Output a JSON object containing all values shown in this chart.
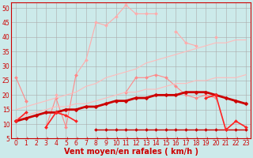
{
  "background_color": "#cceaea",
  "grid_color": "#aaaaaa",
  "xlabel": "Vent moyen/en rafales ( km/h )",
  "xlabel_color": "#cc0000",
  "x_ticks": [
    0,
    1,
    2,
    3,
    4,
    5,
    6,
    7,
    8,
    9,
    10,
    11,
    12,
    13,
    14,
    15,
    16,
    17,
    18,
    19,
    20,
    21,
    22,
    23
  ],
  "ylim": [
    5,
    52
  ],
  "xlim": [
    -0.5,
    23.5
  ],
  "yticks": [
    5,
    10,
    15,
    20,
    25,
    30,
    35,
    40,
    45,
    50
  ],
  "lines": [
    {
      "color": "#ffaaaa",
      "lw": 0.8,
      "marker": "D",
      "markersize": 2.0,
      "y": [
        null,
        18,
        null,
        null,
        20,
        null,
        27,
        32,
        45,
        44,
        47,
        51,
        48,
        48,
        48,
        null,
        42,
        38,
        37,
        null,
        40,
        null,
        null,
        null
      ]
    },
    {
      "color": "#ff8888",
      "lw": 0.8,
      "marker": "D",
      "markersize": 2.0,
      "y": [
        26,
        18,
        null,
        9,
        19,
        9,
        27,
        null,
        null,
        null,
        null,
        21,
        26,
        26,
        27,
        26,
        23,
        20,
        19,
        20,
        19,
        null,
        null,
        null
      ]
    },
    {
      "color": "#ffbbbb",
      "lw": 0.8,
      "marker": null,
      "markersize": 0,
      "y": [
        15,
        16,
        17,
        18,
        19,
        20,
        21,
        23,
        24,
        26,
        27,
        28,
        29,
        31,
        32,
        33,
        34,
        35,
        36,
        37,
        38,
        38,
        39,
        39
      ]
    },
    {
      "color": "#ffbbbb",
      "lw": 0.8,
      "marker": null,
      "markersize": 0,
      "y": [
        12,
        13,
        14,
        15,
        16,
        16,
        17,
        17,
        18,
        19,
        20,
        21,
        21,
        22,
        22,
        23,
        24,
        24,
        25,
        25,
        26,
        26,
        26,
        27
      ]
    },
    {
      "color": "#cc0000",
      "lw": 2.0,
      "marker": "D",
      "markersize": 2.5,
      "y": [
        11,
        12,
        13,
        14,
        14,
        15,
        15,
        16,
        16,
        17,
        18,
        18,
        19,
        19,
        20,
        20,
        20,
        21,
        21,
        21,
        20,
        19,
        18,
        17
      ]
    },
    {
      "color": "#cc0000",
      "lw": 1.0,
      "marker": "D",
      "markersize": 2.0,
      "y": [
        null,
        null,
        null,
        null,
        null,
        null,
        null,
        null,
        8,
        8,
        8,
        8,
        8,
        8,
        8,
        8,
        8,
        8,
        8,
        8,
        8,
        8,
        8,
        8
      ]
    },
    {
      "color": "#ff2222",
      "lw": 1.2,
      "marker": "D",
      "markersize": 2.0,
      "y": [
        11,
        14,
        null,
        9,
        14,
        13,
        11,
        null,
        null,
        null,
        null,
        null,
        null,
        null,
        null,
        null,
        null,
        null,
        null,
        19,
        20,
        8,
        11,
        9
      ]
    }
  ],
  "tick_fontsize": 5.5,
  "label_fontsize": 7,
  "arrow_color": "#cc0000"
}
